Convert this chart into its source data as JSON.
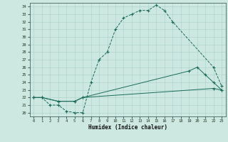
{
  "title": "",
  "xlabel": "Humidex (Indice chaleur)",
  "xlim": [
    -0.5,
    23.5
  ],
  "ylim": [
    19.5,
    34.5
  ],
  "xticks": [
    0,
    1,
    2,
    3,
    4,
    5,
    6,
    7,
    8,
    9,
    10,
    11,
    12,
    13,
    14,
    15,
    16,
    17,
    18,
    19,
    20,
    21,
    22,
    23
  ],
  "yticks": [
    20,
    21,
    22,
    23,
    24,
    25,
    26,
    27,
    28,
    29,
    30,
    31,
    32,
    33,
    34
  ],
  "background_color": "#cce8e0",
  "grid_color": "#aacfc8",
  "line_color": "#1a6b5a",
  "line1": {
    "x": [
      0,
      1,
      2,
      3,
      4,
      5,
      6,
      7,
      8,
      9,
      10,
      11,
      12,
      13,
      14,
      15,
      16,
      17,
      22,
      23
    ],
    "y": [
      22,
      22,
      21,
      21,
      20.2,
      20,
      20,
      24,
      27,
      28,
      31,
      32.5,
      33,
      33.5,
      33.5,
      34.2,
      33.5,
      32,
      26,
      23.5
    ],
    "linestyle": "--"
  },
  "line2": {
    "x": [
      0,
      1,
      3,
      5,
      6,
      19,
      20,
      21,
      22,
      23
    ],
    "y": [
      22,
      22,
      21.5,
      21.5,
      22,
      25.5,
      26,
      25,
      24,
      23
    ],
    "linestyle": "-"
  },
  "line3": {
    "x": [
      0,
      1,
      3,
      5,
      6,
      22,
      23
    ],
    "y": [
      22,
      22,
      21.5,
      21.5,
      22,
      23.2,
      23
    ],
    "linestyle": "-"
  }
}
